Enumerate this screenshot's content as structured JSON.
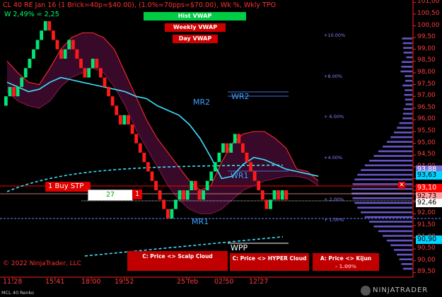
{
  "header": {
    "title": "CL 40 RE Jan 16  (1 Brick=40p=$40.00), (1.0%=70pps=$70.00), Wk %, Wkly TPO",
    "weekly": "W 2,49% = 2,25",
    "mcl": "MCL 40 Renko"
  },
  "buttons": {
    "hist_vwap": "Hist VWAP",
    "weekly_vwap": "Weekly VWAP",
    "day_vwap": "Day VWAP"
  },
  "bottom_buttons": [
    {
      "label": "C: Price <> Scalp Cloud",
      "sub": ""
    },
    {
      "label": "C: Price <> HYPER Cloud",
      "sub": ""
    },
    {
      "label": "A: Price <> Kijun",
      "sub": "- 1.00%"
    }
  ],
  "order": {
    "buy_stp_label": "1 Buy STP",
    "qty_pos": "27",
    "qty": "1"
  },
  "levels": {
    "mr2": "MR2",
    "wr2": "WR2",
    "wr1": "WR1",
    "mr1": "MR1",
    "wpp": "WPP"
  },
  "percent_labels": [
    "+10.00%",
    "+8.00%",
    "+ 6.00%",
    "+4.00%",
    "+ 2.00%",
    "+ 1.00%"
  ],
  "price_axis": [
    "101,00",
    "100,50",
    "100,00",
    "99,50",
    "99,00",
    "98,50",
    "98,00",
    "97,50",
    "97,00",
    "96,50",
    "96,00",
    "95,50",
    "95,00",
    "94,50",
    "94,00",
    "93,50",
    "93,00",
    "92,50",
    "92,00",
    "91,50",
    "91,00",
    "90,50",
    "90,00",
    "89,50"
  ],
  "price_tags": [
    {
      "text": "93,88",
      "price": 93.88,
      "bg": "#7b6fd6",
      "fg": "#ffffff"
    },
    {
      "text": "93,63",
      "price": 93.63,
      "bg": "#00d4ff",
      "fg": "#000000"
    },
    {
      "text": "93,10",
      "price": 93.1,
      "bg": "#ff0000",
      "fg": "#ffffff"
    },
    {
      "text": "92,73",
      "price": 92.73,
      "bg": "#ffa0a0",
      "fg": "#000000"
    },
    {
      "text": "92,46",
      "price": 92.46,
      "bg": "#ffffff",
      "fg": "#000000"
    },
    {
      "text": "90,90",
      "price": 90.9,
      "bg": "#00d4ff",
      "fg": "#000000"
    }
  ],
  "time_axis": [
    "11:28",
    "15:41",
    "18:00",
    "19:52",
    "25 feb",
    "02:50",
    "12:27"
  ],
  "footer": {
    "copyright": "© 2022 NinjaTrader, LLC",
    "brand": "NINJATRADER"
  },
  "colors": {
    "up": "#00e676",
    "down": "#ff1a1a",
    "cloud": "#3b0a2a",
    "cloud_edge": "#ff2b2b",
    "vwap": "#40e0ff",
    "profile": "#6a5acd"
  },
  "chart_data": {
    "type": "renko",
    "brick_size": 0.4,
    "ylim": [
      89.3,
      101.1
    ],
    "bricks": [
      {
        "open": 96.6,
        "close": 97.0
      },
      {
        "open": 97.0,
        "close": 97.4
      },
      {
        "open": 97.4,
        "close": 97.0
      },
      {
        "open": 97.0,
        "close": 97.4
      },
      {
        "open": 97.4,
        "close": 97.8
      },
      {
        "open": 97.8,
        "close": 98.2
      },
      {
        "open": 98.2,
        "close": 98.6
      },
      {
        "open": 98.6,
        "close": 99.0
      },
      {
        "open": 99.0,
        "close": 99.4
      },
      {
        "open": 99.4,
        "close": 99.8
      },
      {
        "open": 99.8,
        "close": 100.2
      },
      {
        "open": 100.2,
        "close": 99.8
      },
      {
        "open": 99.8,
        "close": 99.4
      },
      {
        "open": 99.4,
        "close": 99.0
      },
      {
        "open": 99.0,
        "close": 98.6
      },
      {
        "open": 98.6,
        "close": 99.0
      },
      {
        "open": 99.0,
        "close": 99.4
      },
      {
        "open": 99.4,
        "close": 99.0
      },
      {
        "open": 99.0,
        "close": 98.6
      },
      {
        "open": 98.6,
        "close": 98.2
      },
      {
        "open": 98.2,
        "close": 97.8
      },
      {
        "open": 97.8,
        "close": 98.2
      },
      {
        "open": 98.2,
        "close": 98.6
      },
      {
        "open": 98.6,
        "close": 98.2
      },
      {
        "open": 98.2,
        "close": 97.8
      },
      {
        "open": 97.8,
        "close": 97.4
      },
      {
        "open": 97.4,
        "close": 97.0
      },
      {
        "open": 97.0,
        "close": 96.6
      },
      {
        "open": 96.6,
        "close": 96.2
      },
      {
        "open": 96.2,
        "close": 95.8
      },
      {
        "open": 95.8,
        "close": 96.2
      },
      {
        "open": 96.2,
        "close": 95.8
      },
      {
        "open": 95.8,
        "close": 95.4
      },
      {
        "open": 95.4,
        "close": 95.0
      },
      {
        "open": 95.0,
        "close": 94.6
      },
      {
        "open": 94.6,
        "close": 94.2
      },
      {
        "open": 94.2,
        "close": 93.8
      },
      {
        "open": 93.8,
        "close": 93.4
      },
      {
        "open": 93.4,
        "close": 93.0
      },
      {
        "open": 93.0,
        "close": 92.6
      },
      {
        "open": 92.6,
        "close": 92.2
      },
      {
        "open": 92.2,
        "close": 91.8
      },
      {
        "open": 91.8,
        "close": 92.2
      },
      {
        "open": 92.2,
        "close": 92.6
      },
      {
        "open": 92.6,
        "close": 93.0
      },
      {
        "open": 93.0,
        "close": 92.6
      },
      {
        "open": 92.6,
        "close": 93.0
      },
      {
        "open": 93.0,
        "close": 93.4
      },
      {
        "open": 93.4,
        "close": 93.0
      },
      {
        "open": 93.0,
        "close": 92.6
      },
      {
        "open": 92.6,
        "close": 93.0
      },
      {
        "open": 93.0,
        "close": 93.4
      },
      {
        "open": 93.4,
        "close": 93.8
      },
      {
        "open": 93.8,
        "close": 94.2
      },
      {
        "open": 94.2,
        "close": 94.6
      },
      {
        "open": 94.6,
        "close": 95.0
      },
      {
        "open": 95.0,
        "close": 94.6
      },
      {
        "open": 94.6,
        "close": 95.0
      },
      {
        "open": 95.0,
        "close": 95.4
      },
      {
        "open": 95.4,
        "close": 95.0
      },
      {
        "open": 95.0,
        "close": 94.6
      },
      {
        "open": 94.6,
        "close": 94.2
      },
      {
        "open": 94.2,
        "close": 93.8
      },
      {
        "open": 93.8,
        "close": 93.4
      },
      {
        "open": 93.4,
        "close": 93.0
      },
      {
        "open": 93.0,
        "close": 92.6
      },
      {
        "open": 92.6,
        "close": 92.2
      },
      {
        "open": 92.2,
        "close": 92.6
      },
      {
        "open": 92.6,
        "close": 93.0
      },
      {
        "open": 93.0,
        "close": 92.6
      },
      {
        "open": 92.6,
        "close": 93.0
      },
      {
        "open": 93.0,
        "close": 92.6
      }
    ],
    "cloud_upper": [
      98.5,
      98.0,
      97.6,
      97.5,
      98.2,
      99.0,
      99.5,
      99.7,
      99.7,
      99.5,
      99.0,
      98.0,
      97.0,
      96.0,
      95.2,
      94.6,
      94.0,
      93.4,
      93.0,
      93.2,
      94.2,
      95.0,
      95.4,
      95.5,
      95.5,
      95.2,
      94.8,
      93.9,
      93.8,
      93.4
    ],
    "cloud_lower": [
      97.2,
      96.8,
      96.6,
      96.5,
      96.8,
      97.4,
      97.8,
      98.0,
      98.2,
      98.0,
      97.4,
      96.6,
      95.6,
      94.8,
      94.0,
      93.2,
      92.6,
      92.2,
      92.0,
      92.0,
      92.2,
      92.6,
      93.0,
      93.2,
      93.4,
      93.5,
      93.6,
      93.6,
      93.5,
      93.2
    ],
    "vwap_line": [
      97.6,
      97.4,
      97.2,
      97.3,
      97.6,
      97.8,
      97.7,
      97.6,
      97.5,
      97.4,
      97.3,
      97.2,
      97.0,
      96.9,
      96.6,
      96.4,
      96.2,
      95.8,
      95.2,
      94.4,
      93.5,
      93.6,
      94.1,
      94.4,
      94.3,
      94.1,
      93.9,
      93.8,
      93.7,
      93.6
    ]
  }
}
